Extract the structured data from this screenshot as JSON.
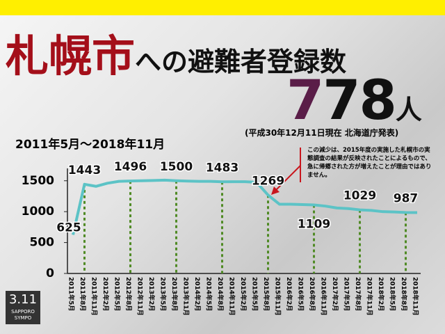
{
  "title_highlight": "札幌市",
  "title_rest": "への避難者登録数",
  "total": {
    "number": "778",
    "unit": "人"
  },
  "source": "(平成30年12月11日現在 北海道庁発表)",
  "note": "この減少は、2015年度の実施した札幌市の実態調査の結果が反映されたことによるもので、急に帰郷された方が増えたことが理由ではありません。",
  "logo": {
    "mark": "3.11",
    "name": "SAPPORO SYMPO"
  },
  "chart_data": {
    "type": "line",
    "title": "2011年5月〜2018年11月",
    "categories": [
      "2011年5月",
      "2011年8月",
      "2011年11月",
      "2012年2月",
      "2012年5月",
      "2012年8月",
      "2012年11月",
      "2013年2月",
      "2013年5月",
      "2013年8月",
      "2013年11月",
      "2014年2月",
      "2014年5月",
      "2014年8月",
      "2014年11月",
      "2015年2月",
      "2015年5月",
      "2015年8月",
      "2015年11月",
      "2016年2月",
      "2016年5月",
      "2016年8月",
      "2016年11月",
      "2017年2月",
      "2017年5月",
      "2017年8月",
      "2017年11月",
      "2018年2月",
      "2018年5月",
      "2018年8月",
      "2018年11月"
    ],
    "series": [
      {
        "name": "避難者登録数",
        "color": "#5cc3c6",
        "values": [
          625,
          1443,
          1410,
          1460,
          1490,
          1496,
          1500,
          1505,
          1510,
          1500,
          1495,
          1490,
          1490,
          1483,
          1485,
          1485,
          1475,
          1269,
          1120,
          1120,
          1115,
          1109,
          1090,
          1060,
          1050,
          1029,
          1020,
          1000,
          995,
          987,
          985
        ]
      }
    ],
    "labeled_points": [
      0,
      1,
      5,
      9,
      13,
      17,
      21,
      25,
      29
    ],
    "highlight_lines": [
      1,
      5,
      9,
      13,
      17,
      21,
      25,
      29
    ],
    "highlight_color": "#4f8a24",
    "ylim": [
      0,
      1700
    ],
    "yticks": [
      0,
      500,
      1000,
      1500
    ]
  }
}
